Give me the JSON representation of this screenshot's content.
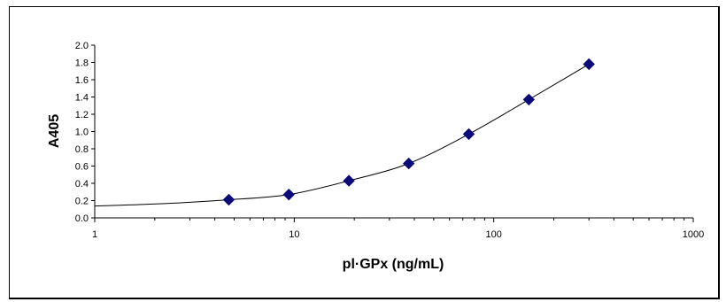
{
  "chart_data": {
    "type": "scatter",
    "xlabel": "pl·GPx (ng/mL)",
    "ylabel": "A405",
    "xscale": "log",
    "xlim": [
      1,
      1000
    ],
    "ylim": [
      0,
      2.0
    ],
    "x_ticks": [
      "1",
      "10",
      "100",
      "1000"
    ],
    "y_ticks": [
      "0.0",
      "0.2",
      "0.4",
      "0.6",
      "0.8",
      "1.0",
      "1.2",
      "1.4",
      "1.6",
      "1.8",
      "2.0"
    ],
    "marker_color": "#0a0a7a",
    "curve_color": "#000000",
    "grid": false,
    "series": [
      {
        "x": [
          4.7,
          9.4,
          18.8,
          37.5,
          75,
          150,
          300
        ],
        "y": [
          0.21,
          0.27,
          0.43,
          0.63,
          0.97,
          1.37,
          1.78
        ]
      }
    ],
    "fit_curve": true
  }
}
